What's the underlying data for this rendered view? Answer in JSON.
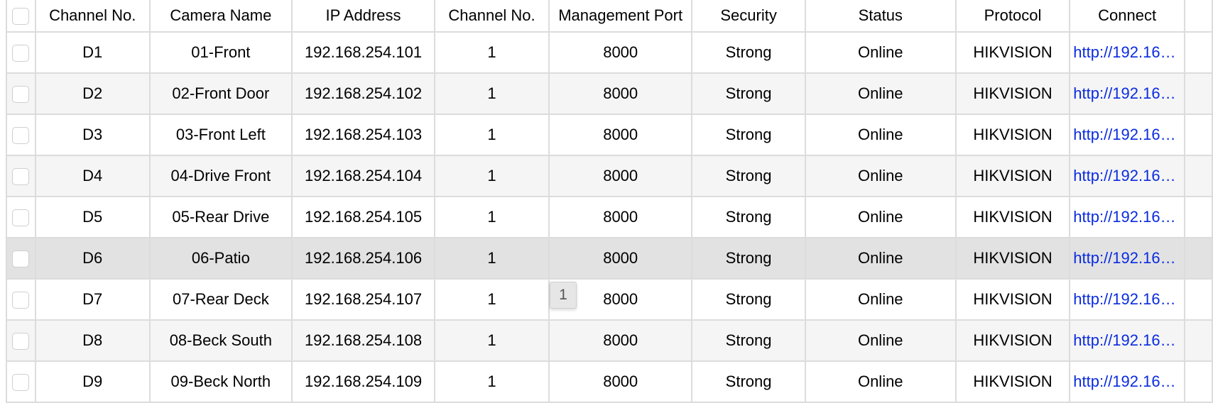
{
  "columns": [
    "Channel No.",
    "Camera Name",
    "IP Address",
    "Channel No.",
    "Management Port",
    "Security",
    "Status",
    "Protocol",
    "Connect"
  ],
  "rows": [
    {
      "channel": "D1",
      "name": "01-Front",
      "ip": "192.168.254.101",
      "ch": "1",
      "port": "8000",
      "security": "Strong",
      "status": "Online",
      "protocol": "HIKVISION",
      "connect": "http://192.16…"
    },
    {
      "channel": "D2",
      "name": "02-Front Door",
      "ip": "192.168.254.102",
      "ch": "1",
      "port": "8000",
      "security": "Strong",
      "status": "Online",
      "protocol": "HIKVISION",
      "connect": "http://192.16…"
    },
    {
      "channel": "D3",
      "name": "03-Front Left",
      "ip": "192.168.254.103",
      "ch": "1",
      "port": "8000",
      "security": "Strong",
      "status": "Online",
      "protocol": "HIKVISION",
      "connect": "http://192.16…"
    },
    {
      "channel": "D4",
      "name": "04-Drive Front",
      "ip": "192.168.254.104",
      "ch": "1",
      "port": "8000",
      "security": "Strong",
      "status": "Online",
      "protocol": "HIKVISION",
      "connect": "http://192.16…"
    },
    {
      "channel": "D5",
      "name": "05-Rear Drive",
      "ip": "192.168.254.105",
      "ch": "1",
      "port": "8000",
      "security": "Strong",
      "status": "Online",
      "protocol": "HIKVISION",
      "connect": "http://192.16…"
    },
    {
      "channel": "D6",
      "name": "06-Patio",
      "ip": "192.168.254.106",
      "ch": "1",
      "port": "8000",
      "security": "Strong",
      "status": "Online",
      "protocol": "HIKVISION",
      "connect": "http://192.16…"
    },
    {
      "channel": "D7",
      "name": "07-Rear Deck",
      "ip": "192.168.254.107",
      "ch": "1",
      "port": "8000",
      "security": "Strong",
      "status": "Online",
      "protocol": "HIKVISION",
      "connect": "http://192.16…"
    },
    {
      "channel": "D8",
      "name": "08-Beck South",
      "ip": "192.168.254.108",
      "ch": "1",
      "port": "8000",
      "security": "Strong",
      "status": "Online",
      "protocol": "HIKVISION",
      "connect": "http://192.16…"
    },
    {
      "channel": "D9",
      "name": "09-Beck North",
      "ip": "192.168.254.109",
      "ch": "1",
      "port": "8000",
      "security": "Strong",
      "status": "Online",
      "protocol": "HIKVISION",
      "connect": "http://192.16…"
    }
  ],
  "hovered_row": "D6",
  "tooltip": "1",
  "colors": {
    "link": "#0a2be0",
    "hover_row": "#e2e2e2",
    "alt_row": "#f5f5f5",
    "border": "#dcdcdc"
  }
}
